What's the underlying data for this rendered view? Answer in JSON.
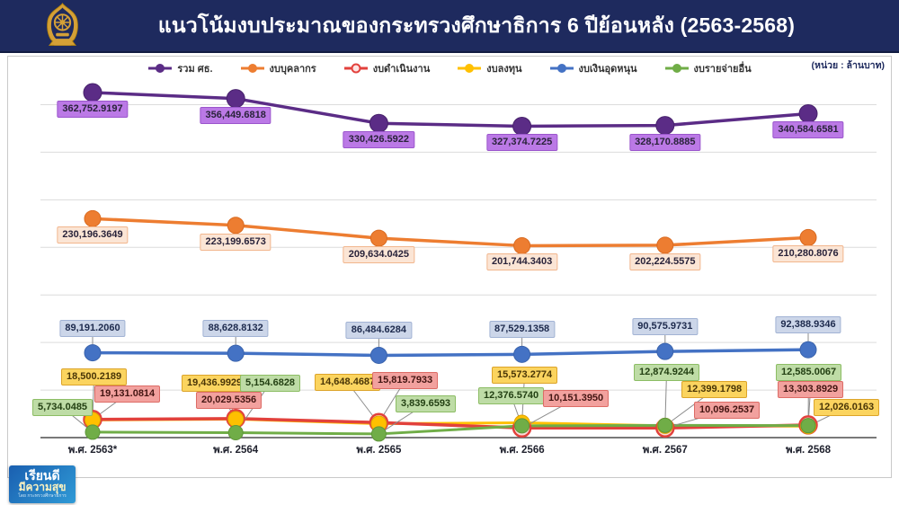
{
  "header": {
    "title": "แนวโน้มงบประมาณของกระทรวงศึกษาธิการ 6 ปีย้อนหลัง (2563-2568)",
    "emblem": "ministry-of-education-seal"
  },
  "unit_label": "(หน่วย : ล้านบาท)",
  "chart_data": {
    "type": "line",
    "title": "แนวโน้มงบประมาณของกระทรวงศึกษาธิการ 6 ปีย้อนหลัง (2563-2568)",
    "unit": "ล้านบาท",
    "legend_position": "top",
    "grid": true,
    "gridline_interval": 50000,
    "ylim": [
      0,
      385000
    ],
    "categories": [
      "พ.ศ. 2563*",
      "พ.ศ. 2564",
      "พ.ศ. 2565",
      "พ.ศ. 2566",
      "พ.ศ. 2567",
      "พ.ศ. 2568"
    ],
    "series": [
      {
        "name": "รวม ศธ.",
        "color": "#5b2c86",
        "marker": "filled-circle",
        "values": [
          362752.9197,
          356449.6818,
          330426.5922,
          327374.7225,
          328170.8885,
          340584.6581
        ],
        "labels": [
          "362,752.9197",
          "356,449.6818",
          "330,426.5922",
          "327,374.7225",
          "328,170.8885",
          "340,584.6581"
        ]
      },
      {
        "name": "งบบุคลากร",
        "color": "#ed7d31",
        "marker": "filled-circle",
        "values": [
          230196.3649,
          223199.6573,
          209634.0425,
          201744.3403,
          202224.5575,
          210280.8076
        ],
        "labels": [
          "230,196.3649",
          "223,199.6573",
          "209,634.0425",
          "201,744.3403",
          "202,224.5575",
          "210,280.8076"
        ]
      },
      {
        "name": "งบดำเนินงาน",
        "color": "#e2413c",
        "marker": "open-circle",
        "values": [
          19131.0814,
          20029.5356,
          15819.7933,
          10151.395,
          10096.2537,
          13303.8929
        ],
        "labels": [
          "19,131.0814",
          "20,029.5356",
          "15,819.7933",
          "10,151.3950",
          "10,096.2537",
          "13,303.8929"
        ]
      },
      {
        "name": "งบลงทุน",
        "color": "#ffc000",
        "marker": "filled-circle",
        "values": [
          18500.2189,
          19436.9929,
          14648.4687,
          15573.2774,
          12399.1798,
          12026.0163
        ],
        "labels": [
          "18,500.2189",
          "19,436.9929",
          "14,648.4687",
          "15,573.2774",
          "12,399.1798",
          "12,026.0163"
        ]
      },
      {
        "name": "งบเงินอุดหนุน",
        "color": "#4472c4",
        "marker": "filled-circle",
        "values": [
          89191.206,
          88628.8132,
          86484.6284,
          87529.1358,
          90575.9731,
          92388.9346
        ],
        "labels": [
          "89,191.2060",
          "88,628.8132",
          "86,484.6284",
          "87,529.1358",
          "90,575.9731",
          "92,388.9346"
        ]
      },
      {
        "name": "งบรายจ่ายอื่น",
        "color": "#70ad47",
        "marker": "filled-circle",
        "values": [
          5734.0485,
          5154.6828,
          3839.6593,
          12376.574,
          12874.9244,
          12585.0067
        ],
        "labels": [
          "5,734.0485",
          "5,154.6828",
          "3,839.6593",
          "12,376.5740",
          "12,874.9244",
          "12,585.0067"
        ]
      }
    ]
  },
  "footer_badge": {
    "line1": "เรียนดี",
    "line2": "มีความสุข",
    "line3": "โดย กระทรวงศึกษาธิการ"
  }
}
